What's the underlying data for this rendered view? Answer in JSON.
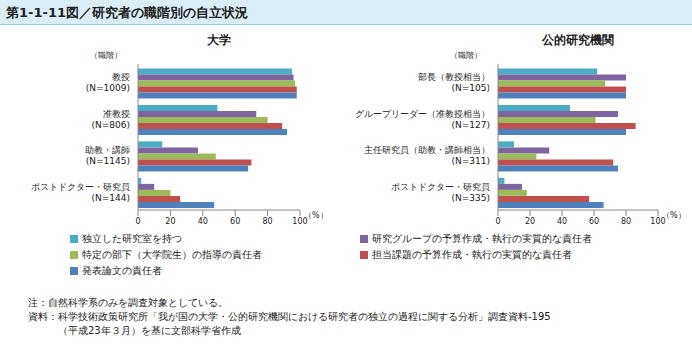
{
  "title": "第1-1-11図／研究者の職階別の自立状況",
  "notes": [
    "注：自然科学系のみを調査対象としている。",
    "資料：科学技術政策研究所「我が国の大学・公的研究機関における研究者の独立の過程に関する分析」調査資料-195",
    "（平成23年３月）を基に文部科学省作成"
  ],
  "chart_data": [
    {
      "type": "bar",
      "title": "大学",
      "orientation": "horizontal",
      "grid": false,
      "legend": "bottom",
      "y_label": "（職階）",
      "x_label": "（%）",
      "categories": [
        "教授\n(N=1009)",
        "准教授\n(N=806)",
        "助教・講師\n(N=1145)",
        "ポストドクター・研究員\n(N=144)"
      ],
      "xlim": [
        0,
        100
      ],
      "xticks": [
        0,
        20,
        40,
        60,
        80,
        100
      ],
      "series": [
        {
          "name": "独立した研究室を持つ",
          "color": "#4bacc6",
          "values": [
            95,
            49,
            15,
            2
          ]
        },
        {
          "name": "研究グループの予算作成・執行の実質的な責任者",
          "color": "#8064a2",
          "values": [
            96,
            73,
            37,
            10
          ]
        },
        {
          "name": "特定の部下（大学院生）の指導の責任者",
          "color": "#9bbb59",
          "values": [
            97,
            80,
            48,
            20
          ]
        },
        {
          "name": "担当課題の予算作成・執行の実質的な責任者",
          "color": "#c0504d",
          "values": [
            98,
            89,
            70,
            26
          ]
        },
        {
          "name": "発表論文の責任者",
          "color": "#4f81bd",
          "values": [
            98,
            92,
            68,
            47
          ]
        }
      ]
    },
    {
      "type": "bar",
      "title": "公的研究機関",
      "orientation": "horizontal",
      "grid": false,
      "legend": "bottom",
      "y_label": "（職階）",
      "x_label": "（%）",
      "categories": [
        "部長（教授相当）\n(N=105)",
        "グループリーダー（准教授相当）\n(N=127)",
        "主任研究員（助教・講師相当）\n(N=311)",
        "ポストドクター・研究員\n(N=335)"
      ],
      "xlim": [
        0,
        100
      ],
      "xticks": [
        0,
        20,
        40,
        60,
        80,
        100
      ],
      "series": [
        {
          "name": "独立した研究室を持つ",
          "color": "#4bacc6",
          "values": [
            62,
            45,
            10,
            4
          ]
        },
        {
          "name": "研究グループの予算作成・執行の実質的な責任者",
          "color": "#8064a2",
          "values": [
            80,
            75,
            32,
            15
          ]
        },
        {
          "name": "特定の部下（大学院生）の指導の責任者",
          "color": "#9bbb59",
          "values": [
            67,
            61,
            24,
            18
          ]
        },
        {
          "name": "担当課題の予算作成・執行の実質的な責任者",
          "color": "#c0504d",
          "values": [
            80,
            86,
            72,
            57
          ]
        },
        {
          "name": "発表論文の責任者",
          "color": "#4f81bd",
          "values": [
            80,
            80,
            75,
            66
          ]
        }
      ]
    }
  ]
}
